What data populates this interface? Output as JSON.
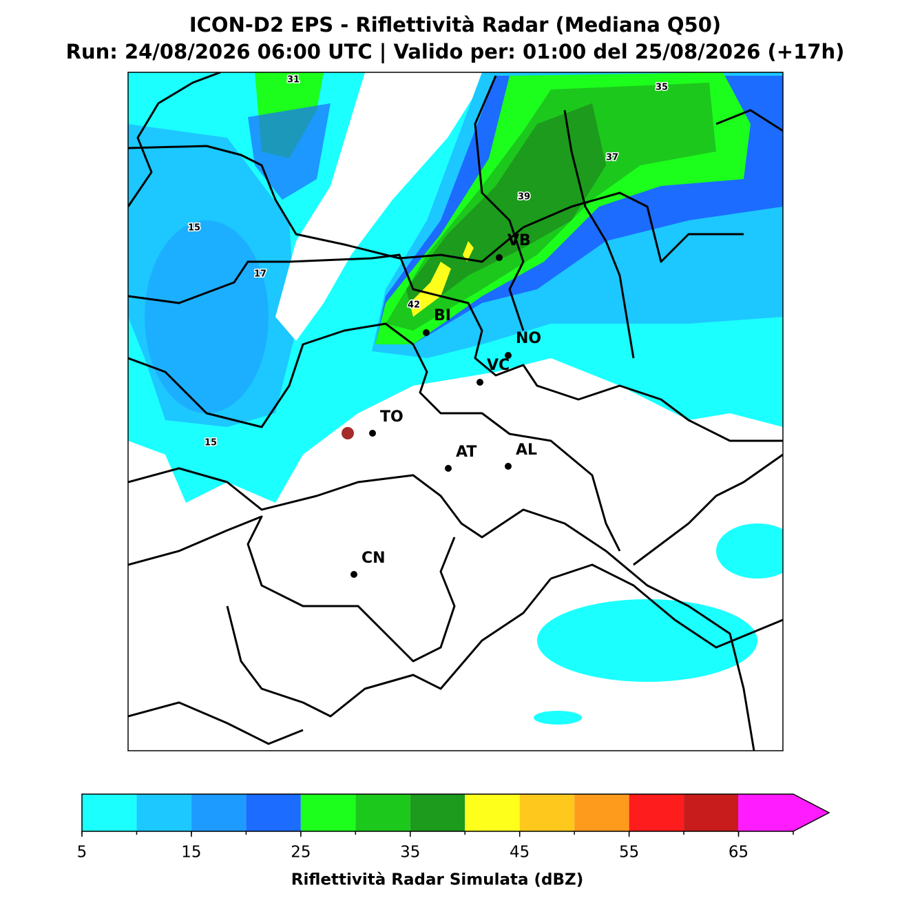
{
  "header": {
    "title": "ICON-D2 EPS - Riflettività Radar (Mediana Q50)",
    "subtitle": "Run: 24/08/2026 06:00 UTC | Valido per: 01:00 del 25/08/2026 (+17h)"
  },
  "map": {
    "cities": [
      "VB",
      "BI",
      "NO",
      "VC",
      "TO",
      "AT",
      "AL",
      "CN"
    ],
    "contour_labels": [
      31,
      35,
      37,
      39,
      15,
      17,
      42,
      15
    ]
  },
  "colorbar": {
    "label": "Riflettività Radar Simulata (dBZ)",
    "bounds": [
      5,
      10,
      15,
      20,
      25,
      30,
      35,
      40,
      45,
      50,
      55,
      60,
      65,
      70
    ],
    "colors": [
      "#1cffff",
      "#1cc8ff",
      "#1e9bff",
      "#1c6cff",
      "#1cff1c",
      "#1cc81c",
      "#1c9b1c",
      "#ffff1c",
      "#ffc81c",
      "#ff9b1c",
      "#ff1c1c",
      "#c81c1c",
      "#ff1cff"
    ],
    "ticks": [
      5,
      15,
      25,
      35,
      45,
      55,
      65
    ],
    "extend": "max"
  }
}
